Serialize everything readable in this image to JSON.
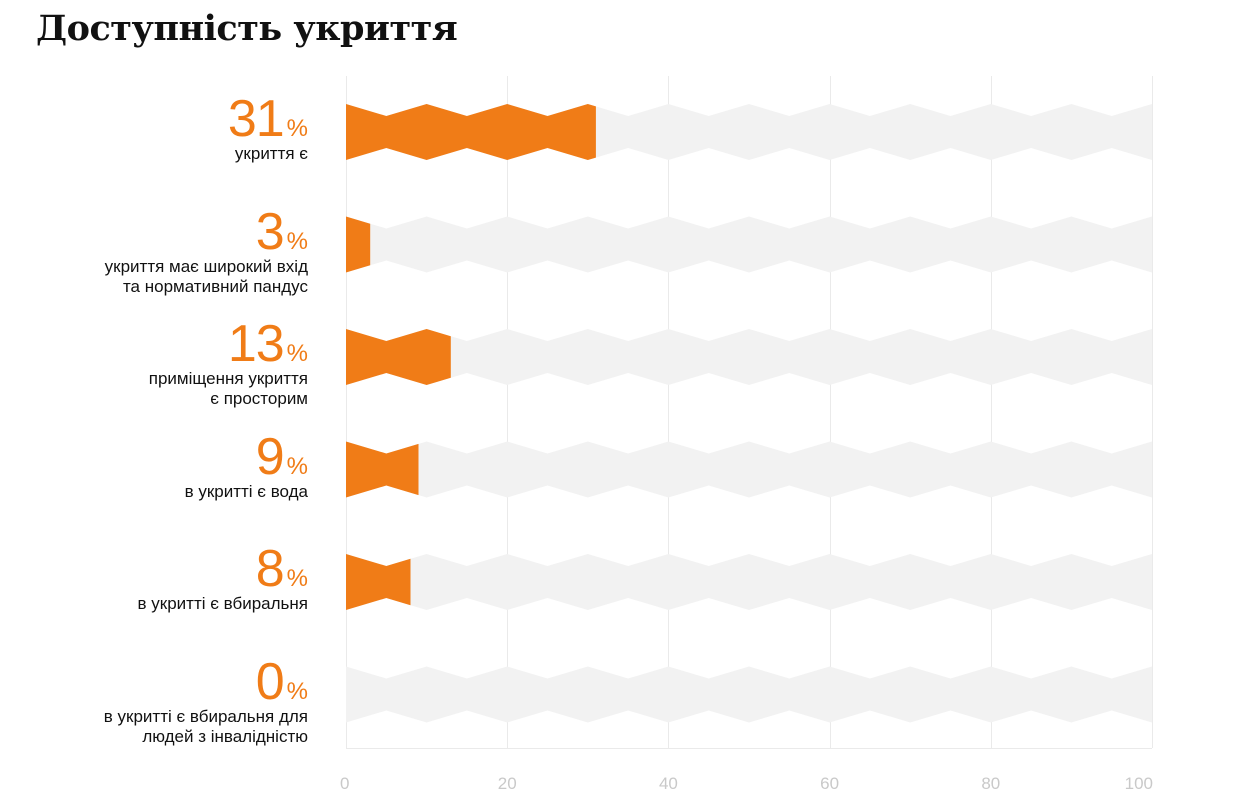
{
  "title": "Доступність укриття",
  "colors": {
    "accent": "#f07c17",
    "track": "#f2f2f2",
    "grid": "#eaeaea",
    "tick": "#c9c9c9"
  },
  "chart_data": {
    "type": "bar",
    "orientation": "horizontal",
    "title": "Доступність укриття",
    "unit": "%",
    "xlim": [
      0,
      100
    ],
    "xticks": [
      0,
      20,
      40,
      60,
      80,
      100
    ],
    "grid": true,
    "categories": [
      "укриття є",
      "укриття має широкий вхід\nта нормативний пандус",
      "приміщення укриття\nє просторим",
      "в укритті є вода",
      "в укритті є вбиральня",
      "в укритті є вбиральня для\nлюдей з інвалідністю"
    ],
    "values": [
      31,
      3,
      13,
      9,
      8,
      0
    ]
  }
}
